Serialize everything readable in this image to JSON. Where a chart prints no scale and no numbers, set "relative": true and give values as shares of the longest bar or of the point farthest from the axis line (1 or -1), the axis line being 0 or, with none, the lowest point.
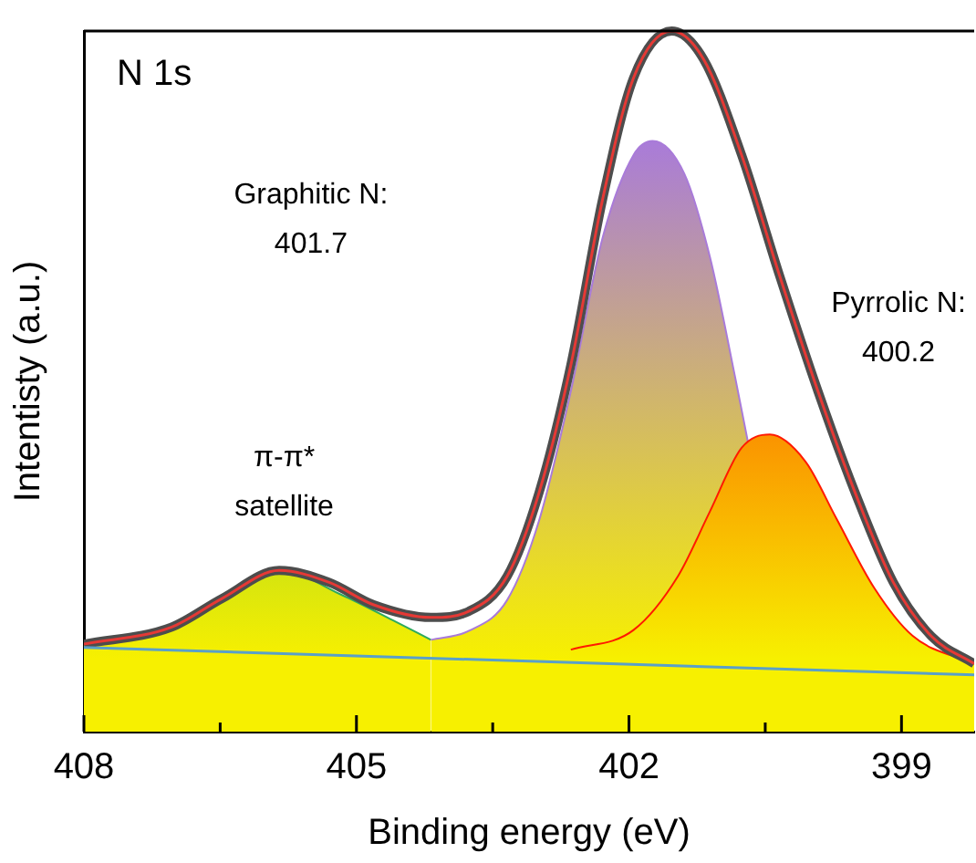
{
  "chart_data": {
    "type": "line",
    "title": "N 1s",
    "xlabel": "Binding energy (eV)",
    "ylabel": "Intentisty (a.u.)",
    "relative": true,
    "xlim": [
      408,
      398.2
    ],
    "xticks": [
      408,
      {
        "value": 406.5,
        "label": null
      },
      405,
      {
        "value": 403.5,
        "label": null
      },
      402,
      {
        "value": 400.5,
        "label": null
      },
      399
    ],
    "legend": false,
    "grid": false,
    "marker": "none",
    "line_style": "solid",
    "annotations": [
      "Graphitic N:\n401.7",
      "Pyrrolic N:\n400.2",
      "π-π*\nsatellite"
    ],
    "series": [
      {
        "color": "#4d4d4d",
        "x": [
          408,
          407.04,
          406.48,
          405.85,
          405.3,
          404.81,
          404.18,
          403.76,
          403.34,
          402.99,
          402.64,
          402.29,
          401.95,
          401.53,
          401.18,
          400.76,
          400.34,
          399.92,
          399.51,
          399.09,
          398.67,
          398.2
        ],
        "values": [
          0.125,
          0.149,
          0.19,
          0.23,
          0.213,
          0.181,
          0.163,
          0.172,
          0.222,
          0.341,
          0.523,
          0.76,
          0.933,
          1,
          0.96,
          0.823,
          0.65,
          0.486,
          0.341,
          0.213,
          0.136,
          0.097
        ]
      },
      {
        "color": "#e53935",
        "x": [
          408,
          407.04,
          406.48,
          405.85,
          405.3,
          404.81,
          404.18,
          403.76,
          403.34,
          402.99,
          402.64,
          402.29,
          401.95,
          401.53,
          401.18,
          400.76,
          400.34,
          399.92,
          399.51,
          399.09,
          398.67,
          398.2
        ],
        "values": [
          0.125,
          0.149,
          0.19,
          0.23,
          0.213,
          0.181,
          0.163,
          0.172,
          0.222,
          0.341,
          0.523,
          0.76,
          0.933,
          1,
          0.96,
          0.823,
          0.65,
          0.486,
          0.341,
          0.213,
          0.136,
          0.097
        ]
      },
      {
        "type": "area",
        "color": "#ff1a00",
        "x": [
          402.64,
          401.95,
          401.46,
          401.11,
          400.76,
          400.45,
          400.06,
          399.72,
          399.3,
          398.88,
          398.2
        ],
        "values": [
          0.117,
          0.145,
          0.222,
          0.314,
          0.405,
          0.424,
          0.386,
          0.305,
          0.205,
          0.137,
          0.097
        ]
      },
      {
        "type": "area",
        "color": "#a97bd9",
        "x": [
          404.18,
          403.76,
          403.34,
          402.99,
          402.64,
          402.29,
          401.95,
          401.74,
          401.39,
          401.11,
          400.83,
          400.69
        ],
        "values": [
          0.131,
          0.144,
          0.188,
          0.301,
          0.486,
          0.705,
          0.823,
          0.843,
          0.796,
          0.678,
          0.505,
          0.413
        ]
      },
      {
        "type": "area",
        "color": "#2eaa5c",
        "x": [
          408,
          407.04,
          406.41,
          405.78,
          405.16,
          404.6,
          404.18
        ],
        "values": [
          0.125,
          0.145,
          0.2,
          0.227,
          0.195,
          0.159,
          0.131
        ]
      },
      {
        "color": "#5aa0c8",
        "x": [
          408,
          398.2
        ],
        "values": [
          0.12,
          0.081
        ]
      }
    ]
  }
}
